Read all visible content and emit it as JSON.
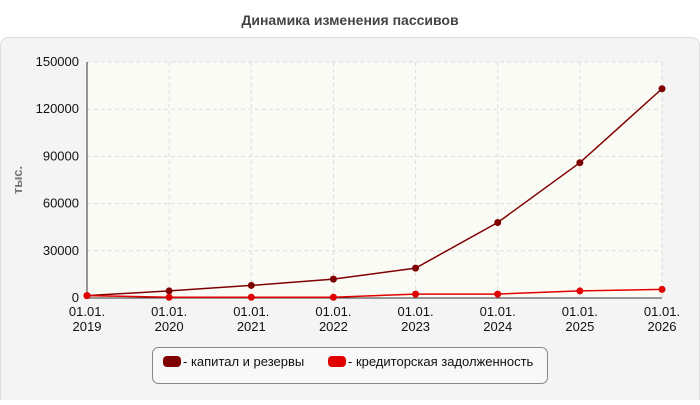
{
  "chart_data": {
    "type": "line",
    "title": "Динамика изменения пассивов",
    "y_label": "тыс.",
    "categories": [
      [
        "01.01.",
        "2019"
      ],
      [
        "01.01.",
        "2020"
      ],
      [
        "01.01.",
        "2021"
      ],
      [
        "01.01.",
        "2022"
      ],
      [
        "01.01.",
        "2023"
      ],
      [
        "01.01.",
        "2024"
      ],
      [
        "01.01.",
        "2025"
      ],
      [
        "01.01.",
        "2026"
      ]
    ],
    "series": [
      {
        "name": "- капитал и резервы",
        "color": "#7f0000",
        "values": [
          1500,
          4500,
          8000,
          12000,
          19000,
          48000,
          86000,
          133000
        ]
      },
      {
        "name": "- кредиторская задолженность",
        "color": "#e00000",
        "values": [
          1500,
          500,
          500,
          500,
          2500,
          2500,
          4500,
          5500
        ]
      }
    ],
    "ylim": [
      0,
      150000
    ],
    "yticks": [
      0,
      30000,
      60000,
      90000,
      120000,
      150000
    ],
    "grid": true
  }
}
